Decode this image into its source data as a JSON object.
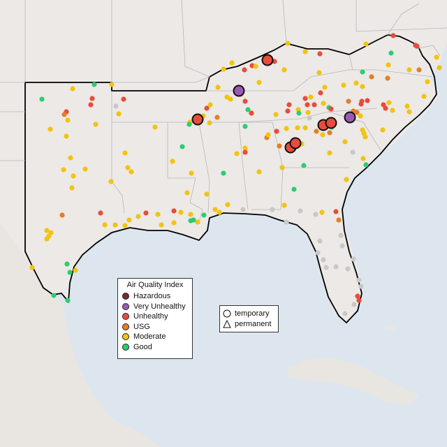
{
  "legend": {
    "title": "Air Quality Index",
    "categories": [
      {
        "label": "Hazardous",
        "color": "#7a2a2a"
      },
      {
        "label": "Very Unhealthy",
        "color": "#9b59b6"
      },
      {
        "label": "Unhealthy",
        "color": "#e74c3c"
      },
      {
        "label": "USG",
        "color": "#e67e22"
      },
      {
        "label": "Moderate",
        "color": "#f1c40f"
      },
      {
        "label": "Good",
        "color": "#2ecc71"
      }
    ]
  },
  "shape_legend": {
    "temporary": "temporary",
    "permanent": "permanent"
  },
  "colors": {
    "water": "#dde6ee",
    "land": "#ece9e6",
    "outside_land": "#e6e3e0",
    "no_data": "#c8c8c8"
  }
}
